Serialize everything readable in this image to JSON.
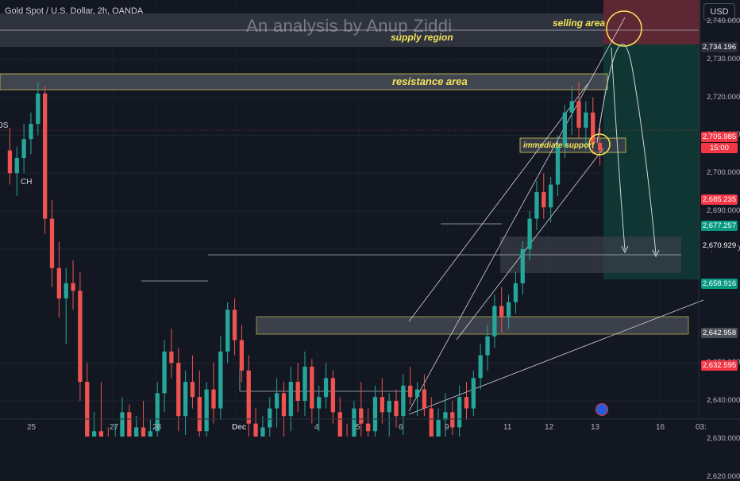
{
  "header": {
    "symbol": "Gold Spot / U.S. Dollar, 2h, OANDA",
    "watermark": "An analysis by Anup Ziddi",
    "currency_button": "USD"
  },
  "annotations": {
    "selling_area": "selling area",
    "supply_region": "supply region",
    "resistance_area": "resistance area",
    "immediate_support": "immediate support",
    "left_os": "OS",
    "left_ch": "CH"
  },
  "colors": {
    "background": "#131722",
    "up_candle": "#26a69a",
    "down_candle": "#ef5350",
    "annotation": "#f5e45a"
  },
  "chart_data": {
    "type": "candlestick",
    "y_ticks": [
      "2,740.000",
      "2,730.000",
      "2,720.000",
      "2,710.000",
      "2,700.000",
      "2,690.000",
      "2,680.000",
      "2,650.000",
      "2,640.000",
      "2,630.000",
      "2,620.000"
    ],
    "x_ticks": [
      "25",
      "27",
      "28",
      "Dec",
      "4",
      "5",
      "6",
      "9",
      "11",
      "12",
      "13",
      "16",
      "03:"
    ],
    "price_tags": [
      {
        "value": "2,734.196",
        "color": "#2a2e39"
      },
      {
        "value": "2,705.985",
        "color": "#f23645"
      },
      {
        "value": "15:00",
        "color": "#f23645"
      },
      {
        "value": "2,685.235",
        "color": "#f23645"
      },
      {
        "value": "2,677.257",
        "color": "#089981"
      },
      {
        "value": "2,670.929",
        "color": "#131722"
      },
      {
        "value": "2,658.916",
        "color": "#089981"
      },
      {
        "value": "2,642.958",
        "color": "#4a4e59"
      },
      {
        "value": "2,632.595",
        "color": "#f23645"
      }
    ],
    "ohlc": [
      [
        2706,
        2712,
        2697,
        2700
      ],
      [
        2700,
        2707,
        2694,
        2704
      ],
      [
        2704,
        2713,
        2700,
        2709
      ],
      [
        2709,
        2716,
        2705,
        2713
      ],
      [
        2713,
        2724,
        2710,
        2721
      ],
      [
        2721,
        2723,
        2684,
        2688
      ],
      [
        2688,
        2693,
        2670,
        2675
      ],
      [
        2675,
        2682,
        2662,
        2667
      ],
      [
        2667,
        2675,
        2655,
        2671
      ],
      [
        2671,
        2677,
        2664,
        2669
      ],
      [
        2669,
        2674,
        2640,
        2645
      ],
      [
        2645,
        2650,
        2620,
        2626
      ],
      [
        2626,
        2637,
        2617,
        2632
      ],
      [
        2632,
        2645,
        2624,
        2628
      ],
      [
        2628,
        2633,
        2615,
        2619
      ],
      [
        2619,
        2634,
        2614,
        2630
      ],
      [
        2630,
        2641,
        2623,
        2637
      ],
      [
        2637,
        2639,
        2618,
        2622
      ],
      [
        2622,
        2636,
        2619,
        2633
      ],
      [
        2633,
        2640,
        2627,
        2629
      ],
      [
        2629,
        2635,
        2623,
        2632
      ],
      [
        2632,
        2645,
        2628,
        2642
      ],
      [
        2642,
        2656,
        2637,
        2653
      ],
      [
        2653,
        2659,
        2646,
        2650
      ],
      [
        2650,
        2654,
        2632,
        2636
      ],
      [
        2636,
        2648,
        2631,
        2645
      ],
      [
        2645,
        2652,
        2638,
        2641
      ],
      [
        2641,
        2648,
        2628,
        2632
      ],
      [
        2632,
        2645,
        2627,
        2643
      ],
      [
        2643,
        2650,
        2634,
        2638
      ],
      [
        2638,
        2657,
        2635,
        2653
      ],
      [
        2653,
        2666,
        2650,
        2664
      ],
      [
        2664,
        2667,
        2652,
        2656
      ],
      [
        2656,
        2660,
        2645,
        2648
      ],
      [
        2648,
        2652,
        2630,
        2634
      ],
      [
        2634,
        2638,
        2620,
        2624
      ],
      [
        2624,
        2636,
        2621,
        2633
      ],
      [
        2633,
        2641,
        2627,
        2638
      ],
      [
        2638,
        2646,
        2633,
        2642
      ],
      [
        2642,
        2645,
        2630,
        2636
      ],
      [
        2636,
        2649,
        2632,
        2645
      ],
      [
        2645,
        2650,
        2637,
        2640
      ],
      [
        2640,
        2653,
        2636,
        2649
      ],
      [
        2649,
        2651,
        2634,
        2638
      ],
      [
        2638,
        2644,
        2632,
        2641
      ],
      [
        2641,
        2650,
        2638,
        2646
      ],
      [
        2646,
        2648,
        2634,
        2637
      ],
      [
        2637,
        2641,
        2626,
        2630
      ],
      [
        2630,
        2634,
        2621,
        2625
      ],
      [
        2625,
        2640,
        2622,
        2638
      ],
      [
        2638,
        2645,
        2630,
        2634
      ],
      [
        2634,
        2638,
        2628,
        2632
      ],
      [
        2632,
        2644,
        2629,
        2641
      ],
      [
        2641,
        2646,
        2634,
        2637
      ],
      [
        2637,
        2642,
        2630,
        2640
      ],
      [
        2640,
        2643,
        2633,
        2636
      ],
      [
        2636,
        2647,
        2631,
        2644
      ],
      [
        2644,
        2649,
        2639,
        2641
      ],
      [
        2641,
        2645,
        2636,
        2643
      ],
      [
        2643,
        2647,
        2636,
        2638
      ],
      [
        2638,
        2641,
        2617,
        2622
      ],
      [
        2622,
        2638,
        2619,
        2635
      ],
      [
        2635,
        2642,
        2630,
        2637
      ],
      [
        2637,
        2640,
        2631,
        2633
      ],
      [
        2633,
        2644,
        2629,
        2641
      ],
      [
        2641,
        2645,
        2635,
        2638
      ],
      [
        2638,
        2648,
        2636,
        2646
      ],
      [
        2646,
        2655,
        2643,
        2652
      ],
      [
        2652,
        2660,
        2648,
        2657
      ],
      [
        2657,
        2668,
        2654,
        2665
      ],
      [
        2665,
        2670,
        2658,
        2662
      ],
      [
        2662,
        2668,
        2659,
        2666
      ],
      [
        2666,
        2674,
        2663,
        2671
      ],
      [
        2671,
        2682,
        2668,
        2680
      ],
      [
        2680,
        2690,
        2677,
        2688
      ],
      [
        2688,
        2698,
        2685,
        2695
      ],
      [
        2695,
        2700,
        2688,
        2691
      ],
      [
        2691,
        2699,
        2687,
        2697
      ],
      [
        2697,
        2710,
        2694,
        2707
      ],
      [
        2707,
        2718,
        2704,
        2716
      ],
      [
        2716,
        2723,
        2710,
        2719
      ],
      [
        2719,
        2724,
        2709,
        2712
      ],
      [
        2712,
        2719,
        2706,
        2716
      ],
      [
        2716,
        2720,
        2705,
        2708
      ],
      [
        2708,
        2712,
        2702,
        2706
      ]
    ]
  }
}
